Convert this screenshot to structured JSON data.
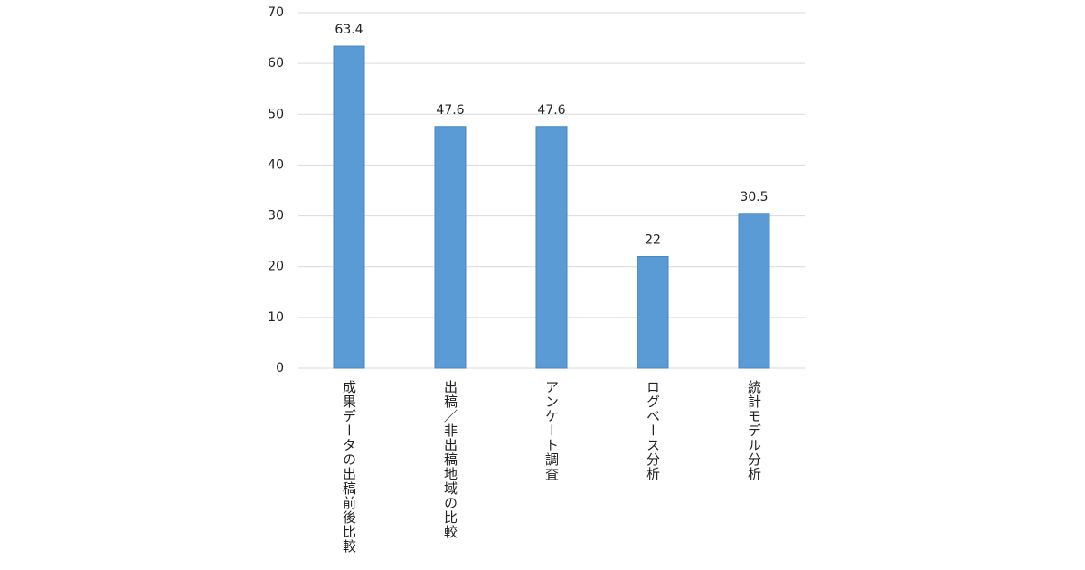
{
  "chart_data": {
    "type": "bar",
    "categories": [
      "成果データの出稿前後比較",
      "出稿／非出稿地域の比較",
      "アンケート調査",
      "ログベース分析",
      "統計モデル分析"
    ],
    "values": [
      63.4,
      47.6,
      47.6,
      22,
      30.5
    ],
    "color": "#5b9bd5",
    "ylim": [
      0,
      70
    ],
    "yticks": [
      0,
      10,
      20,
      30,
      40,
      50,
      60,
      70
    ],
    "grid": true
  }
}
